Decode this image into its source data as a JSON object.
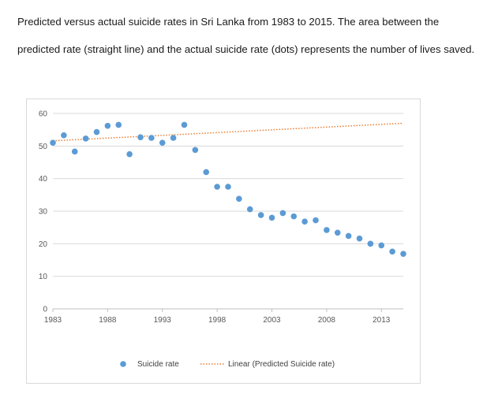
{
  "caption": "Predicted versus actual suicide rates in Sri Lanka from 1983 to 2015. The area between the predicted rate (straight line) and the actual suicide rate (dots) represents the number of lives saved.",
  "chart_data": {
    "type": "scatter",
    "title": "",
    "xlabel": "",
    "ylabel": "",
    "xlim": [
      1983,
      2015
    ],
    "ylim": [
      0,
      60
    ],
    "x_ticks": [
      "1983",
      "1988",
      "1993",
      "1998",
      "2003",
      "2008",
      "2013"
    ],
    "y_ticks": [
      "0",
      "10",
      "20",
      "30",
      "40",
      "50",
      "60"
    ],
    "grid": "horizontal",
    "legend_position": "bottom",
    "series": [
      {
        "name": "Suicide rate",
        "style": "dots",
        "color": "#5b9bd5",
        "x": [
          1983,
          1984,
          1985,
          1986,
          1987,
          1988,
          1989,
          1990,
          1991,
          1992,
          1993,
          1994,
          1995,
          1996,
          1997,
          1998,
          1999,
          2000,
          2001,
          2002,
          2003,
          2004,
          2005,
          2006,
          2007,
          2008,
          2009,
          2010,
          2011,
          2012,
          2013,
          2014,
          2015
        ],
        "y": [
          51,
          53.3,
          48.3,
          52.3,
          54.3,
          56.2,
          56.5,
          47.5,
          52.7,
          52.5,
          51,
          52.5,
          56.5,
          48.8,
          42,
          37.5,
          37.5,
          33.8,
          30.6,
          28.8,
          28,
          29.4,
          28.4,
          26.8,
          27.2,
          24.2,
          23.4,
          22.4,
          21.6,
          20,
          19.5,
          17.6,
          16.9
        ]
      },
      {
        "name": "Linear (Predicted Suicide rate)",
        "style": "dotted-line",
        "color": "#ed7d31",
        "x": [
          1983,
          2015
        ],
        "y": [
          51.6,
          57
        ]
      }
    ]
  }
}
